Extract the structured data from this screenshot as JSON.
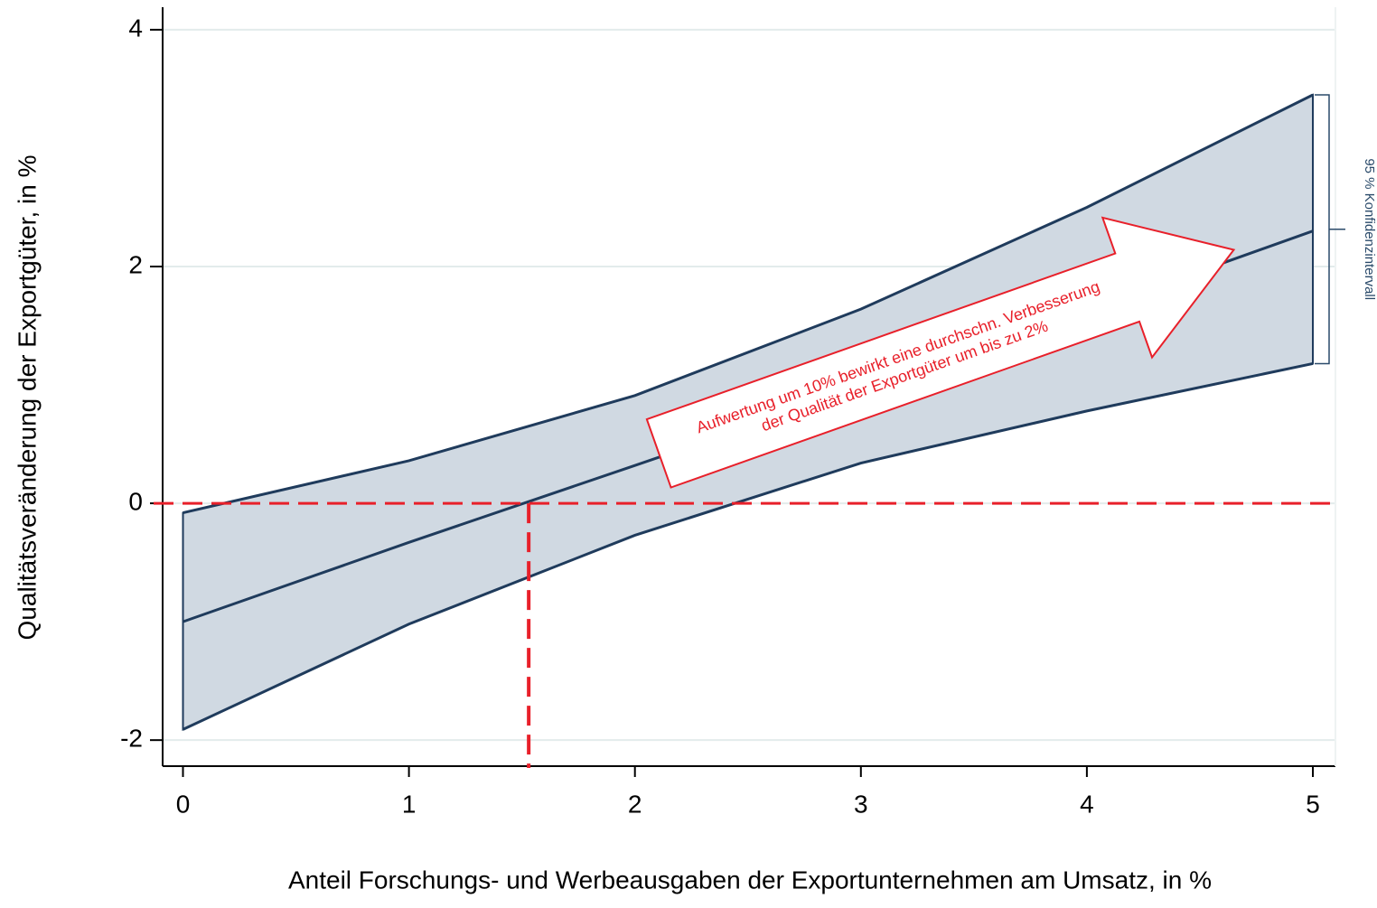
{
  "chart_data": {
    "type": "line",
    "x_label": "Anteil Forschungs- und Werbeausgaben der Exportunternehmen am Umsatz, in %",
    "y_label": "Qualitätsveränderung der Exportgüter, in %",
    "x": [
      0,
      1,
      2,
      3,
      4,
      5
    ],
    "series": [
      {
        "color": "#1f3b5c",
        "values": [
          -1.0,
          -0.33,
          0.32,
          0.97,
          1.62,
          2.3
        ]
      }
    ],
    "band": {
      "color": "#d0d9e2",
      "upper": [
        -0.08,
        0.36,
        0.91,
        1.64,
        2.5,
        3.45
      ],
      "lower": [
        -1.91,
        -1.02,
        -0.27,
        0.34,
        0.78,
        1.18
      ],
      "label": "95 % Konfidenzintervall"
    },
    "reference_lines": {
      "color": "#e8202a",
      "y": 0,
      "x": 1.53
    },
    "annotation": [
      "Aufwertung um 10% bewirkt eine durchschn. Verbesserung",
      "der Qualität der Exportgüter um bis zu 2%"
    ],
    "xlim": [
      -0.09,
      5.1
    ],
    "ylim": [
      -2.22,
      4.19
    ],
    "xticks": [
      0,
      1,
      2,
      3,
      4,
      5
    ],
    "yticks": [
      -2,
      0,
      2,
      4
    ],
    "grid": true
  }
}
